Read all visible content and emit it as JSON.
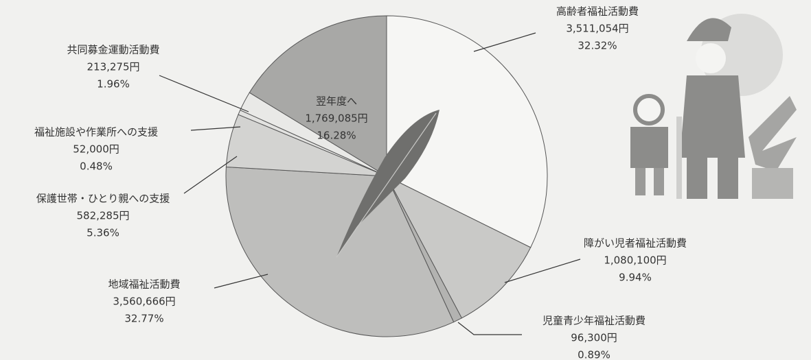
{
  "chart_data": {
    "type": "pie",
    "categories": [
      "高齢者福祉活動費",
      "障がい児者福祉活動費",
      "児童青少年福祉活動費",
      "地域福祉活動費",
      "保護世帯・ひとり親への支援",
      "福祉施設や作業所への支援",
      "共同募金運動活動費",
      "翌年度へ"
    ],
    "amounts": [
      "3,511,054円",
      "1,080,100円",
      "96,300円",
      "3,560,666円",
      "582,285円",
      "52,000円",
      "213,275円",
      "1,769,085円"
    ],
    "values": [
      32.32,
      9.94,
      0.89,
      32.77,
      5.36,
      0.48,
      1.96,
      16.28
    ],
    "value_labels": [
      "32.32%",
      "9.94%",
      "0.89%",
      "32.77%",
      "5.36%",
      "0.48%",
      "1.96%",
      "16.28%"
    ],
    "colors": [
      "#f6f6f4",
      "#c9c9c7",
      "#b3b3b1",
      "#bebebc",
      "#d3d3d1",
      "#e2e2e0",
      "#e9e9e7",
      "#a8a8a6"
    ]
  }
}
